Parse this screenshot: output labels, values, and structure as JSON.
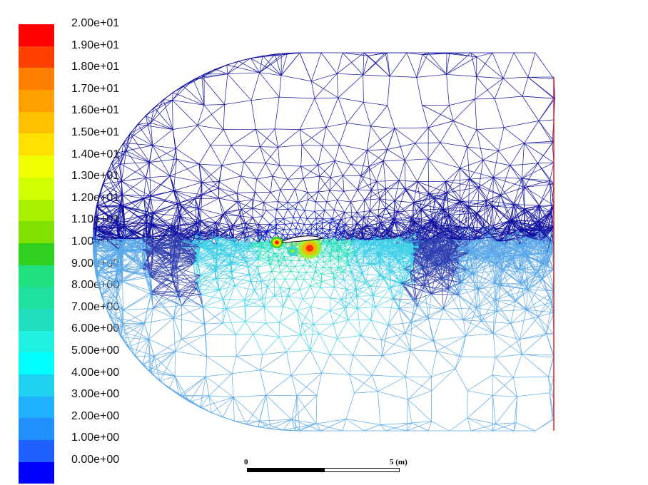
{
  "colormap": {
    "labels": [
      "2.00e+01",
      "1.90e+01",
      "1.80e+01",
      "1.70e+01",
      "1.60e+01",
      "1.50e+01",
      "1.40e+01",
      "1.30e+01",
      "1.20e+01",
      "1.10e+01",
      "1.00e+01",
      "9.00e+00",
      "8.00e+00",
      "7.00e+00",
      "6.00e+00",
      "5.00e+00",
      "4.00e+00",
      "3.00e+00",
      "2.00e+00",
      "1.00e+00",
      "0.00e+00"
    ],
    "colors": [
      "#ff0000",
      "#ff4000",
      "#ff8000",
      "#ffa000",
      "#ffc000",
      "#ffe000",
      "#f0ff00",
      "#d0ff00",
      "#a8f000",
      "#80e000",
      "#30d020",
      "#20e080",
      "#20e0a0",
      "#20e0c0",
      "#20f0e0",
      "#00ffff",
      "#20d0f0",
      "#20b0ff",
      "#2090ff",
      "#2060ff",
      "#0000ff"
    ]
  },
  "mesh": {
    "line_colors": [
      "#0000cc",
      "#30b0e0",
      "#ff3030"
    ]
  },
  "scalebar": {
    "start_label": "0",
    "end_label": "5 (m)"
  }
}
